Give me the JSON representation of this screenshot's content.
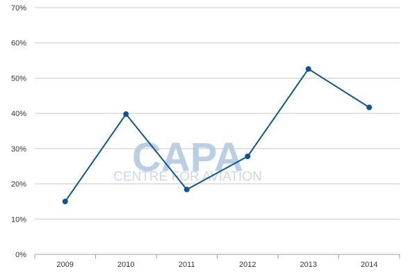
{
  "chart_data": {
    "type": "line",
    "title": "",
    "xlabel": "",
    "ylabel": "",
    "x": [
      "2009",
      "2010",
      "2011",
      "2012",
      "2013",
      "2014"
    ],
    "series": [
      {
        "values": [
          15.0,
          39.8,
          18.4,
          27.8,
          52.6,
          41.7
        ]
      }
    ],
    "ylim": [
      0,
      70
    ],
    "ytick_labels": [
      "0%",
      "10%",
      "20%",
      "30%",
      "40%",
      "50%",
      "60%",
      "70%"
    ],
    "grid": true,
    "legend": "none",
    "colors": {
      "line": "#0a5597",
      "grid": "#c8c8c8",
      "axis": "#a0a0a0"
    }
  },
  "watermark": {
    "main": "CAPA",
    "sub": "CENTRE FOR AVIATION"
  }
}
